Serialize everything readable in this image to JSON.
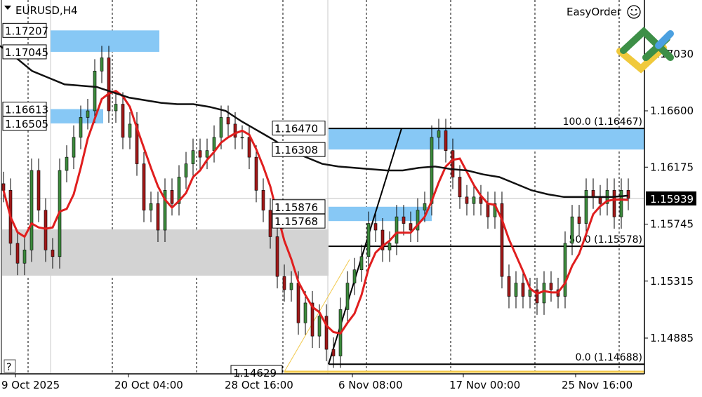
{
  "header": {
    "symbol_label": "EURUSD,H4",
    "easyorder_label": "EasyOrder",
    "smiley_icon": "smiley-face-icon",
    "help_label": "?"
  },
  "colors": {
    "bull": "#3c8a3c",
    "bear": "#a01818",
    "fast_ma": "#e01e1e",
    "slow_ma": "#111111",
    "zone_blue": "#87c8f5",
    "zone_gray": "#d3d3d3",
    "fib_anchor": "#f2c94c"
  },
  "chart_data": {
    "type": "candlestick",
    "symbol": "EURUSD",
    "timeframe": "H4",
    "ylim": [
      1.1443,
      1.175
    ],
    "grid": "vertical dashed",
    "y_ticks": [
      "1.17030",
      "1.16600",
      "1.16175",
      "1.15745",
      "1.15315",
      "1.14885"
    ],
    "x_ticks": [
      "9 Oct 2025",
      "20 Oct 04:00",
      "28 Oct 16:00",
      "6 Nov 08:00",
      "17 Nov 00:00",
      "25 Nov 16:00"
    ],
    "current_price": "1.15939",
    "closes": [
      1.16,
      1.156,
      1.1545,
      1.1555,
      1.1615,
      1.1585,
      1.1555,
      1.155,
      1.1615,
      1.1625,
      1.164,
      1.1655,
      1.166,
      1.169,
      1.17,
      1.166,
      1.1665,
      1.164,
      1.165,
      1.162,
      1.1585,
      1.159,
      1.157,
      1.16,
      1.159,
      1.161,
      1.162,
      1.163,
      1.1625,
      1.163,
      1.164,
      1.1655,
      1.165,
      1.164,
      1.164,
      1.1625,
      1.16,
      1.1585,
      1.1565,
      1.1535,
      1.1525,
      1.153,
      1.15,
      1.1515,
      1.149,
      1.1505,
      1.148,
      1.1475,
      1.151,
      1.153,
      1.154,
      1.155,
      1.1575,
      1.157,
      1.1555,
      1.156,
      1.158,
      1.1575,
      1.157,
      1.1585,
      1.159,
      1.164,
      1.1645,
      1.163,
      1.161,
      1.1595,
      1.159,
      1.1595,
      1.159,
      1.158,
      1.159,
      1.1535,
      1.152,
      1.153,
      1.152,
      1.1525,
      1.1515,
      1.153,
      1.1525,
      1.152,
      1.156,
      1.158,
      1.1575,
      1.16,
      1.1595,
      1.159,
      1.16,
      1.158,
      1.16,
      1.1594
    ],
    "slow_ma": [
      1.1709,
      1.17,
      1.169,
      1.1685,
      1.168,
      1.1679,
      1.1678,
      1.1674,
      1.167,
      1.1668,
      1.1666,
      1.1665,
      1.1665,
      1.1663,
      1.166,
      1.1652,
      1.1645,
      1.1638,
      1.163,
      1.1625,
      1.162,
      1.1618,
      1.1617,
      1.1616,
      1.1615,
      1.1615,
      1.1617,
      1.1618,
      1.1616,
      1.1615,
      1.1612,
      1.161,
      1.1605,
      1.16,
      1.1597,
      1.1595,
      1.1595,
      1.1595,
      1.1595,
      1.1596
    ],
    "zones": [
      {
        "top": "1.17207",
        "bottom": "1.17045",
        "color": "blue"
      },
      {
        "top": "1.16613",
        "bottom": "1.16505",
        "color": "blue"
      },
      {
        "top": "1.16470",
        "bottom": "1.16308",
        "color": "blue"
      },
      {
        "top": "1.15876",
        "bottom": "1.15768",
        "color": "blue"
      },
      {
        "top": "1.15705",
        "bottom": "1.15356",
        "color": "gray"
      }
    ],
    "fibonacci": [
      {
        "label": "100.0 (1.16467)",
        "price": 1.16467
      },
      {
        "label": "50.0 (1.15578)",
        "price": 1.15578
      },
      {
        "label": "0.0 (1.14688)",
        "price": 1.14688
      }
    ],
    "extra_price_label": "1.14629"
  }
}
